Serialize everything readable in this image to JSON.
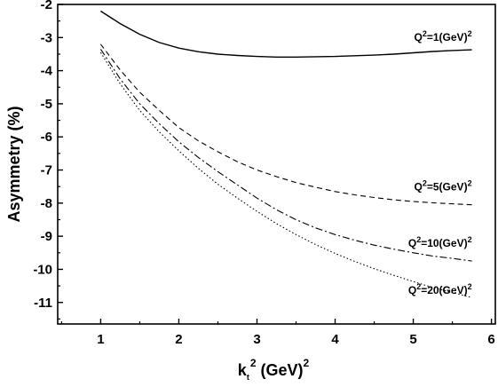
{
  "chart_data": {
    "type": "line",
    "xlabel": {
      "base": "k",
      "sub": "t",
      "sup": "2",
      "rest": " (GeV)",
      "rest_sup": "2"
    },
    "ylabel": "Asymmetry (%)",
    "xlim": [
      0.45,
      6.05
    ],
    "ylim": [
      -11.65,
      -2.0
    ],
    "x_ticks": [
      1,
      2,
      3,
      4,
      5,
      6
    ],
    "y_ticks": [
      -2,
      -3,
      -4,
      -5,
      -6,
      -7,
      -8,
      -9,
      -10,
      -11
    ],
    "grid": false,
    "series": [
      {
        "name": {
          "pre": "Q",
          "sup": "2",
          "post": "=1(GeV)",
          "post_sup": "2"
        },
        "style": "solid",
        "x": [
          1.0,
          1.25,
          1.5,
          1.75,
          2.0,
          2.25,
          2.5,
          2.75,
          3.0,
          3.25,
          3.5,
          3.75,
          4.0,
          4.25,
          4.5,
          4.75,
          5.0,
          5.25,
          5.5,
          5.75
        ],
        "y": [
          -2.2,
          -2.58,
          -2.9,
          -3.15,
          -3.32,
          -3.43,
          -3.5,
          -3.54,
          -3.57,
          -3.59,
          -3.59,
          -3.58,
          -3.57,
          -3.55,
          -3.53,
          -3.5,
          -3.46,
          -3.42,
          -3.39,
          -3.37
        ]
      },
      {
        "name": {
          "pre": "Q",
          "sup": "2",
          "post": "=5(GeV)",
          "post_sup": "2"
        },
        "style": "dashed",
        "x": [
          1.0,
          1.25,
          1.5,
          1.75,
          2.0,
          2.25,
          2.5,
          2.75,
          3.0,
          3.25,
          3.5,
          3.75,
          4.0,
          4.25,
          4.5,
          4.75,
          5.0,
          5.25,
          5.5,
          5.75
        ],
        "y": [
          -3.2,
          -3.98,
          -4.65,
          -5.2,
          -5.72,
          -6.12,
          -6.45,
          -6.75,
          -7.0,
          -7.2,
          -7.38,
          -7.52,
          -7.65,
          -7.75,
          -7.83,
          -7.9,
          -7.95,
          -7.99,
          -8.02,
          -8.05
        ]
      },
      {
        "name": {
          "pre": "Q",
          "sup": "2",
          "post": "=10(GeV)",
          "post_sup": "2"
        },
        "style": "dashdot",
        "x": [
          1.0,
          1.25,
          1.5,
          1.75,
          2.0,
          2.25,
          2.5,
          2.75,
          3.0,
          3.25,
          3.5,
          3.75,
          4.0,
          4.25,
          4.5,
          4.75,
          5.0,
          5.25,
          5.5,
          5.75
        ],
        "y": [
          -3.35,
          -4.25,
          -5.0,
          -5.6,
          -6.15,
          -6.62,
          -7.05,
          -7.45,
          -7.85,
          -8.2,
          -8.5,
          -8.75,
          -8.95,
          -9.12,
          -9.27,
          -9.39,
          -9.5,
          -9.6,
          -9.67,
          -9.75
        ]
      },
      {
        "name": {
          "pre": "Q",
          "sup": "2",
          "post": "=20(GeV)",
          "post_sup": "2"
        },
        "style": "dotted",
        "x": [
          1.0,
          1.25,
          1.5,
          1.75,
          2.0,
          2.25,
          2.5,
          2.75,
          3.0,
          3.25,
          3.5,
          3.75,
          4.0,
          4.25,
          4.5,
          4.75,
          5.0,
          5.25,
          5.5,
          5.75
        ],
        "y": [
          -3.45,
          -4.4,
          -5.2,
          -5.85,
          -6.42,
          -6.95,
          -7.43,
          -7.85,
          -8.25,
          -8.62,
          -8.95,
          -9.25,
          -9.52,
          -9.76,
          -9.98,
          -10.18,
          -10.37,
          -10.55,
          -10.7,
          -10.85
        ]
      }
    ]
  }
}
